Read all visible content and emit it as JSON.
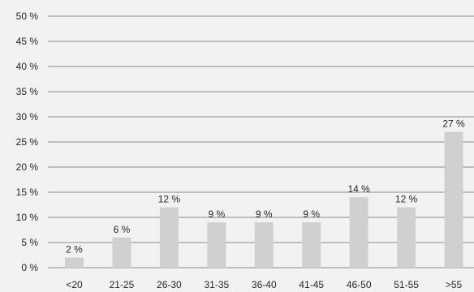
{
  "chart_data": {
    "type": "bar",
    "title": "",
    "xlabel": "",
    "ylabel": "",
    "categories": [
      "<20",
      "21-25",
      "26-30",
      "31-35",
      "36-40",
      "41-45",
      "46-50",
      "51-55",
      ">55"
    ],
    "values": [
      2,
      6,
      12,
      9,
      9,
      9,
      14,
      12,
      27
    ],
    "data_labels": [
      "2 %",
      "6 %",
      "12 %",
      "9 %",
      "9 %",
      "9 %",
      "14 %",
      "12 %",
      "27 %"
    ],
    "ylim": [
      0,
      50
    ],
    "yticks": [
      0,
      5,
      10,
      15,
      20,
      25,
      30,
      35,
      40,
      45,
      50
    ],
    "ytick_labels": [
      "0 %",
      "5 %",
      "10 %",
      "15 %",
      "20 %",
      "25 %",
      "30 %",
      "35 %",
      "40 %",
      "45 %",
      "50 %"
    ],
    "grid": true,
    "legend": "none",
    "colors": {
      "background": "#f2f2f2",
      "bar": "#d0d0d0",
      "grid": "#8c8c8c",
      "text": "#262626"
    }
  }
}
